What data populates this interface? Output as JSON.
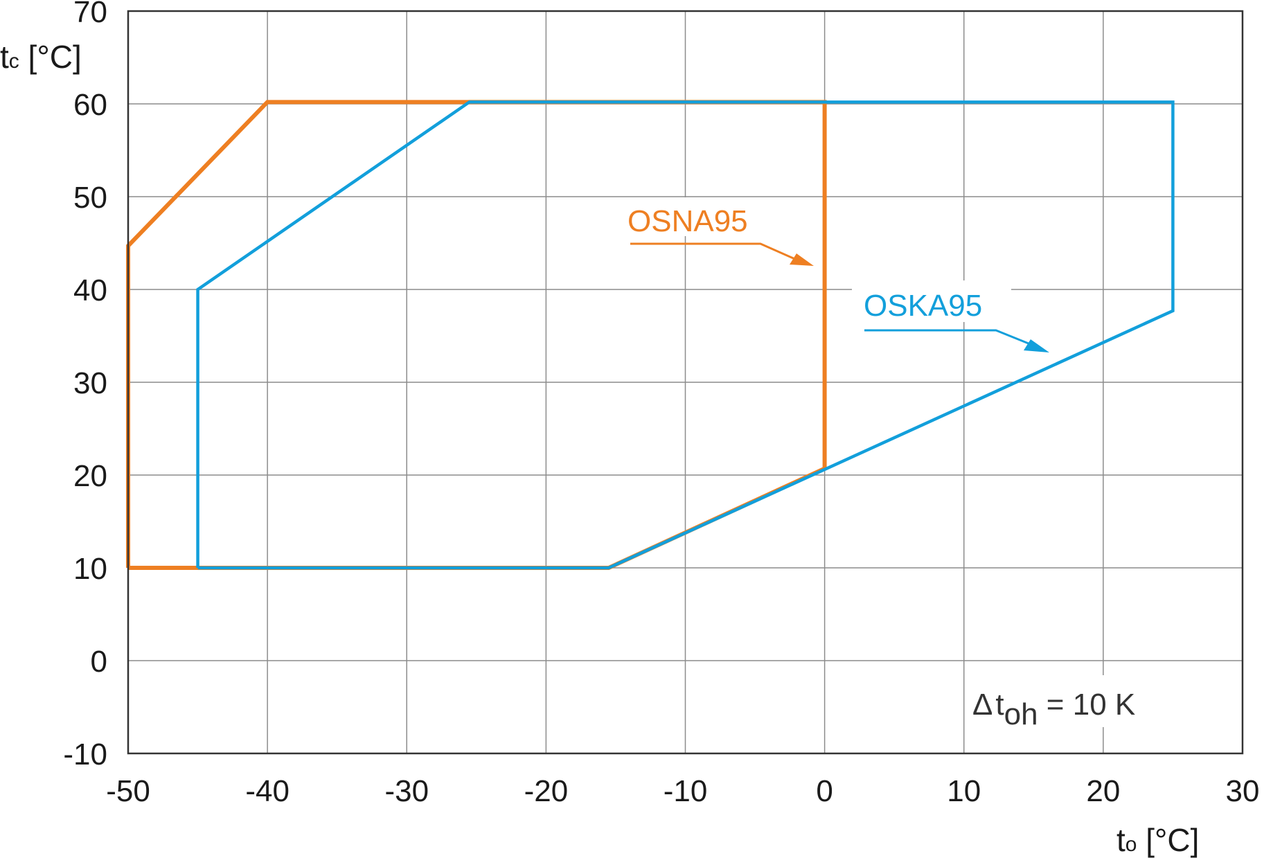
{
  "chart_data": {
    "type": "line",
    "title": "",
    "xlabel": "tₒ [°C]",
    "xlabel_main": "t",
    "xlabel_sub": "o",
    "xlabel_unit": " [°C]",
    "ylabel_main": "t",
    "ylabel_sub": "c",
    "ylabel_unit": " [°C]",
    "xlim": [
      -50,
      30
    ],
    "ylim": [
      -10,
      70
    ],
    "xticks": [
      -50,
      -40,
      -30,
      -20,
      -10,
      0,
      10,
      20,
      30
    ],
    "yticks": [
      -10,
      0,
      10,
      20,
      30,
      40,
      50,
      60,
      70
    ],
    "grid": true,
    "series": [
      {
        "name": "OSNA95",
        "color": "#ee7f22",
        "points": [
          [
            -50,
            10
          ],
          [
            -50,
            44.7
          ],
          [
            -40,
            60.2
          ],
          [
            0,
            60.2
          ],
          [
            0,
            20.7
          ],
          [
            -15.5,
            10
          ],
          [
            -50,
            10
          ]
        ]
      },
      {
        "name": "OSKA95",
        "color": "#129fdb",
        "points": [
          [
            -45,
            10
          ],
          [
            -45,
            40
          ],
          [
            -25.5,
            60.2
          ],
          [
            25,
            60.2
          ],
          [
            25,
            37.7
          ],
          [
            -15.5,
            10
          ],
          [
            -45,
            10
          ]
        ]
      }
    ],
    "annotation": {
      "symbol": "Δ",
      "main": "t",
      "sub": "oh",
      "rest": " = 10 K"
    }
  }
}
